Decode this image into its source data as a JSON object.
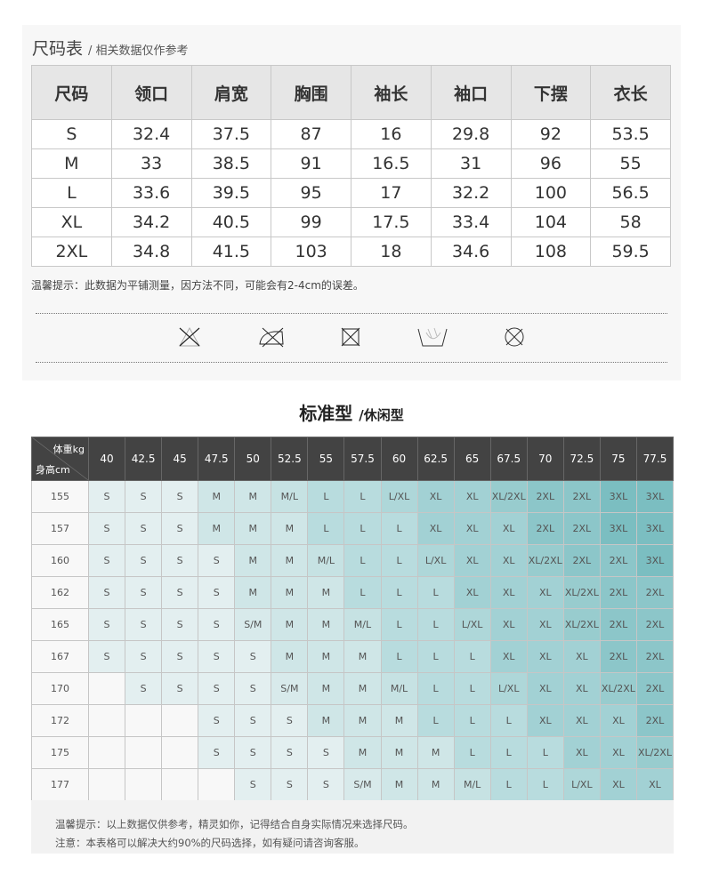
{
  "size_chart": {
    "title": "尺码表",
    "subtitle": "/ 相关数据仅作参考",
    "headers": [
      "尺码",
      "领口",
      "肩宽",
      "胸围",
      "袖长",
      "袖口",
      "下摆",
      "衣长"
    ],
    "rows": [
      [
        "S",
        "32.4",
        "37.5",
        "87",
        "16",
        "29.8",
        "92",
        "53.5"
      ],
      [
        "M",
        "33",
        "38.5",
        "91",
        "16.5",
        "31",
        "96",
        "55"
      ],
      [
        "L",
        "33.6",
        "39.5",
        "95",
        "17",
        "32.2",
        "100",
        "56.5"
      ],
      [
        "XL",
        "34.2",
        "40.5",
        "99",
        "17.5",
        "33.4",
        "104",
        "58"
      ],
      [
        "2XL",
        "34.8",
        "41.5",
        "103",
        "18",
        "34.6",
        "108",
        "59.5"
      ]
    ],
    "note": "温馨提示：此数据为平铺测量，因方法不同，可能会有2-4cm的误差。",
    "care_icons": [
      "do-not-bleach-icon",
      "do-not-iron-icon",
      "do-not-tumble-dry-icon",
      "hand-wash-icon",
      "do-not-dry-clean-icon"
    ]
  },
  "fit_chart": {
    "title": "标准型",
    "subtitle": "/休闲型",
    "weight_label": "体重kg",
    "height_label": "身高cm",
    "weights": [
      "40",
      "42.5",
      "45",
      "47.5",
      "50",
      "52.5",
      "55",
      "57.5",
      "60",
      "62.5",
      "65",
      "67.5",
      "70",
      "72.5",
      "75",
      "77.5"
    ],
    "rows": [
      {
        "height": "155",
        "sizes": [
          "S",
          "S",
          "S",
          "M",
          "M",
          "M/L",
          "L",
          "L",
          "L/XL",
          "XL",
          "XL",
          "XL/2XL",
          "2XL",
          "2XL",
          "3XL",
          "3XL"
        ]
      },
      {
        "height": "157",
        "sizes": [
          "S",
          "S",
          "S",
          "M",
          "M",
          "M",
          "L",
          "L",
          "L",
          "XL",
          "XL",
          "XL",
          "2XL",
          "2XL",
          "3XL",
          "3XL"
        ]
      },
      {
        "height": "160",
        "sizes": [
          "S",
          "S",
          "S",
          "S",
          "M",
          "M",
          "M/L",
          "L",
          "L",
          "L/XL",
          "XL",
          "XL",
          "XL/2XL",
          "2XL",
          "2XL",
          "3XL"
        ]
      },
      {
        "height": "162",
        "sizes": [
          "S",
          "S",
          "S",
          "S",
          "M",
          "M",
          "M",
          "L",
          "L",
          "L",
          "XL",
          "XL",
          "XL",
          "XL/2XL",
          "2XL",
          "2XL"
        ]
      },
      {
        "height": "165",
        "sizes": [
          "S",
          "S",
          "S",
          "S",
          "S/M",
          "M",
          "M",
          "M/L",
          "L",
          "L",
          "L/XL",
          "XL",
          "XL",
          "XL/2XL",
          "2XL",
          "2XL"
        ]
      },
      {
        "height": "167",
        "sizes": [
          "S",
          "S",
          "S",
          "S",
          "S",
          "M",
          "M",
          "M",
          "L",
          "L",
          "L",
          "XL",
          "XL",
          "XL",
          "2XL",
          "2XL"
        ]
      },
      {
        "height": "170",
        "sizes": [
          "",
          "S",
          "S",
          "S",
          "S",
          "S/M",
          "M",
          "M",
          "M/L",
          "L",
          "L",
          "L/XL",
          "XL",
          "XL",
          "XL/2XL",
          "2XL"
        ]
      },
      {
        "height": "172",
        "sizes": [
          "",
          "",
          "",
          "S",
          "S",
          "S",
          "M",
          "M",
          "M",
          "L",
          "L",
          "L",
          "XL",
          "XL",
          "XL",
          "2XL"
        ]
      },
      {
        "height": "175",
        "sizes": [
          "",
          "",
          "",
          "S",
          "S",
          "S",
          "S",
          "M",
          "M",
          "M",
          "L",
          "L",
          "L",
          "XL",
          "XL",
          "XL/2XL"
        ]
      },
      {
        "height": "177",
        "sizes": [
          "",
          "",
          "",
          "",
          "S",
          "S",
          "S",
          "S/M",
          "M",
          "M",
          "M/L",
          "L",
          "L",
          "L/XL",
          "XL",
          "XL"
        ]
      }
    ],
    "size_colors": {
      "S": "#e3eff0",
      "S/M": "#d8eaeb",
      "M": "#cfe6e7",
      "M/L": "#c6e2e3",
      "L": "#b8dcde",
      "L/XL": "#aed7d9",
      "XL": "#a2d1d4",
      "XL/2XL": "#98ccce",
      "2XL": "#8cc6c9",
      "3XL": "#7bbec1",
      "": "#f8f8f8"
    },
    "notes": [
      "温馨提示：以上数据仅供参考，精灵如你，记得结合自身实际情况来选择尺码。",
      "注意：本表格可以解决大约90%的尺码选择，如有疑问请咨询客服。"
    ]
  }
}
